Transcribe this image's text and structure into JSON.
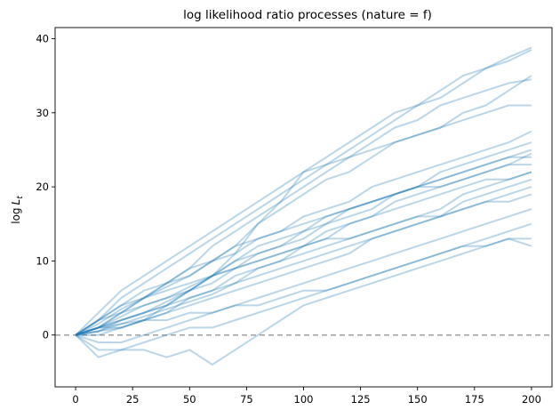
{
  "chart_data": {
    "type": "line",
    "title": "log likelihood ratio processes (nature = f)",
    "xlabel": "",
    "ylabel_base": "log",
    "ylabel_var": "L",
    "ylabel_sub": "t",
    "xlim": [
      -9,
      209
    ],
    "ylim": [
      -7,
      41.5
    ],
    "xticks": [
      0,
      25,
      50,
      75,
      100,
      125,
      150,
      175,
      200
    ],
    "yticks": [
      0,
      10,
      20,
      30,
      40
    ],
    "grid": false,
    "legend": "none",
    "line_color": "#1f77b4",
    "line_alpha": 0.3,
    "reference_line": {
      "y": 0,
      "color": "#a0a0a0",
      "style": "dashed"
    },
    "x": [
      0,
      10,
      20,
      30,
      40,
      50,
      60,
      70,
      80,
      90,
      100,
      110,
      120,
      130,
      140,
      150,
      160,
      170,
      180,
      190,
      200
    ],
    "series": [
      {
        "values": [
          0,
          3,
          6,
          8,
          10,
          12,
          14,
          16,
          18,
          20,
          22,
          24,
          26,
          28,
          30,
          31,
          33,
          35,
          36,
          37,
          38.5
        ]
      },
      {
        "values": [
          0,
          2,
          5,
          7,
          9,
          11,
          13,
          15,
          17,
          19,
          21,
          23,
          25,
          27,
          29,
          31,
          32,
          34,
          36,
          37.5,
          38.8
        ]
      },
      {
        "values": [
          0,
          1,
          3,
          5,
          7,
          9,
          12,
          14,
          16,
          18,
          20,
          22,
          24,
          26,
          28,
          29,
          31,
          32,
          33,
          34,
          34.5
        ]
      },
      {
        "values": [
          0,
          1.5,
          3.5,
          5,
          6.5,
          8,
          10,
          12,
          15,
          17,
          19,
          21,
          22,
          24,
          26,
          27,
          28,
          30,
          31,
          33,
          35
        ]
      },
      {
        "values": [
          0,
          0.5,
          2,
          3,
          4.5,
          6,
          8,
          11,
          15,
          18,
          22,
          23,
          24,
          25,
          26,
          27,
          28,
          29,
          30,
          31,
          31
        ]
      },
      {
        "values": [
          0,
          2,
          4,
          6,
          7,
          8,
          10,
          11,
          13,
          14,
          16,
          17,
          18,
          20,
          21,
          22,
          23,
          24,
          25,
          26,
          27.5
        ]
      },
      {
        "values": [
          0,
          1,
          2,
          3,
          4,
          6,
          7,
          9,
          11,
          12,
          14,
          15,
          17,
          18,
          19,
          20,
          22,
          23,
          24,
          25,
          26
        ]
      },
      {
        "values": [
          0,
          1,
          2.5,
          4,
          5,
          6.5,
          8,
          10,
          11,
          12,
          13,
          15,
          16,
          17,
          19,
          20,
          21,
          22,
          23,
          24,
          25
        ]
      },
      {
        "values": [
          0,
          0,
          1,
          2,
          3,
          5,
          6,
          7,
          9,
          10,
          12,
          13,
          15,
          16,
          18,
          19,
          20,
          21,
          22,
          23,
          24.5
        ]
      },
      {
        "values": [
          0,
          1,
          2,
          3,
          4,
          5,
          6,
          8,
          9,
          10,
          11,
          12,
          13,
          14,
          15,
          16,
          17,
          19,
          20,
          21,
          22
        ]
      },
      {
        "values": [
          0,
          0.5,
          1.5,
          2.5,
          3.5,
          4.5,
          5.5,
          7,
          8,
          9,
          10,
          11,
          12,
          13,
          14,
          15,
          16,
          18,
          19,
          20,
          21
        ]
      },
      {
        "values": [
          0,
          1,
          1.5,
          2,
          3,
          4,
          5,
          6,
          7,
          8,
          9,
          10,
          11,
          13,
          14,
          15,
          16,
          17,
          18,
          19,
          20
        ]
      },
      {
        "values": [
          0,
          2,
          4,
          5,
          6,
          7,
          8,
          9,
          10,
          11,
          12,
          13,
          13,
          14,
          15,
          16,
          16,
          17,
          18,
          18,
          19
        ]
      },
      {
        "values": [
          0,
          -1,
          -1,
          0,
          1,
          2,
          3,
          4,
          5,
          6,
          7,
          8,
          9,
          10,
          11,
          12,
          13,
          14,
          15,
          16,
          17
        ]
      },
      {
        "values": [
          0,
          -3,
          -2,
          -1,
          0,
          1,
          1,
          2,
          3,
          4,
          5,
          6,
          7,
          8,
          9,
          10,
          11,
          12,
          13,
          14,
          15
        ]
      },
      {
        "values": [
          0,
          -2,
          -2,
          -2,
          -3,
          -2,
          -4,
          -2,
          0,
          2,
          4,
          5,
          6,
          7,
          8,
          9,
          10,
          11,
          12,
          13,
          12
        ]
      },
      {
        "values": [
          0,
          1,
          1,
          2,
          2,
          3,
          3,
          4,
          4,
          5,
          6,
          6,
          7,
          8,
          9,
          10,
          11,
          12,
          12,
          13,
          13
        ]
      },
      {
        "values": [
          0,
          2,
          3,
          4,
          5,
          6,
          8,
          9,
          10,
          11,
          12,
          14,
          15,
          16,
          17,
          18,
          19,
          20,
          21,
          21,
          22
        ]
      },
      {
        "values": [
          0,
          1,
          3,
          5,
          7,
          9,
          10,
          12,
          13,
          14,
          15,
          16,
          17,
          18,
          19,
          20,
          20,
          21,
          22,
          23,
          23
        ]
      },
      {
        "values": [
          0,
          0.5,
          1,
          2,
          4,
          6,
          8,
          10,
          12,
          13,
          14,
          16,
          17,
          18,
          19,
          20,
          21,
          22,
          23,
          24,
          24
        ]
      }
    ]
  }
}
